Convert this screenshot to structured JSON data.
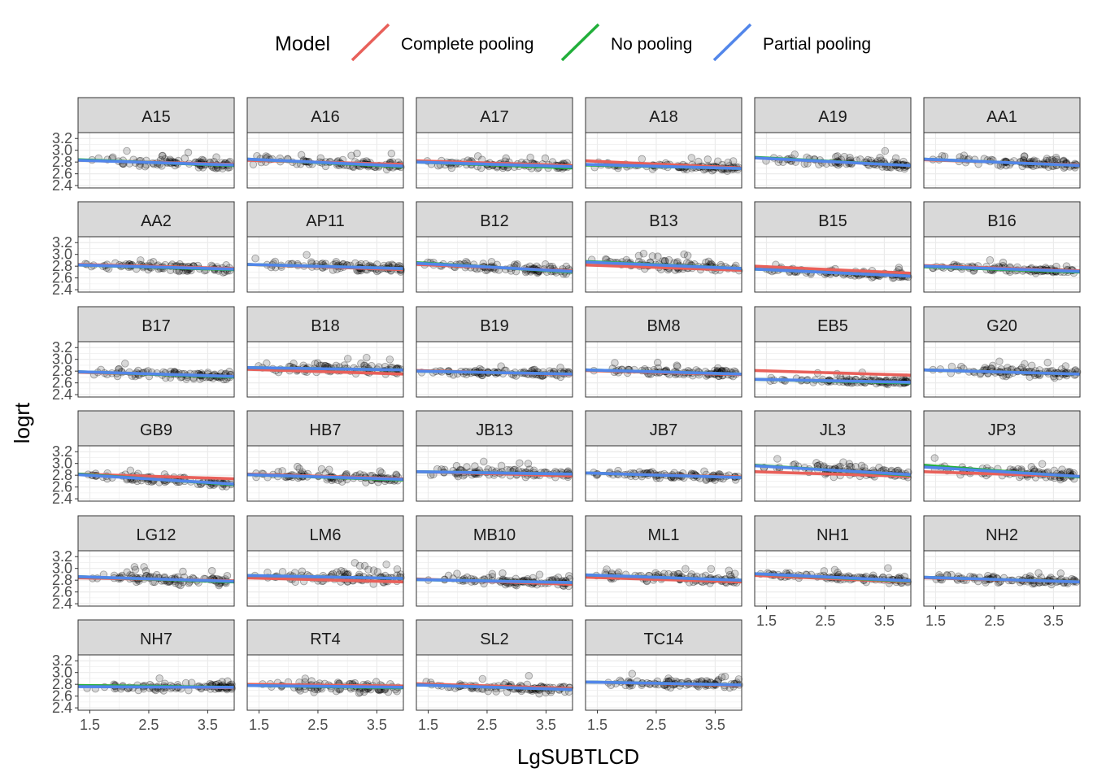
{
  "chart_data": {
    "type": "scatter",
    "xlabel": "LgSUBTLCD",
    "ylabel": "logrt",
    "xlim": [
      1.3,
      3.95
    ],
    "ylim": [
      2.36,
      3.3
    ],
    "xticks": [
      1.5,
      2.5,
      3.5
    ],
    "xtick_labels": [
      "1.5",
      "2.5",
      "3.5"
    ],
    "yticks": [
      2.4,
      2.6,
      2.8,
      3.0,
      3.2
    ],
    "ytick_labels": [
      "2.4",
      "2.6",
      "2.8",
      "3.0",
      "3.2"
    ],
    "grid": true,
    "legend": {
      "title": "Model",
      "placement": "top",
      "entries": [
        {
          "label": "Complete pooling",
          "color": "#E8605A"
        },
        {
          "label": "No pooling",
          "color": "#21AF3A"
        },
        {
          "label": "Partial pooling",
          "color": "#5286EA"
        }
      ]
    },
    "point_alpha": 0.15,
    "panels": [
      {
        "label": "A15",
        "mean": 2.77,
        "spread": 0.07,
        "cp": [
          2.83,
          2.76
        ],
        "np": [
          2.84,
          2.74
        ],
        "pp": [
          2.83,
          2.75
        ]
      },
      {
        "label": "A16",
        "mean": 2.77,
        "spread": 0.07,
        "cp": [
          2.83,
          2.76
        ],
        "np": [
          2.85,
          2.72
        ],
        "pp": [
          2.85,
          2.73
        ]
      },
      {
        "label": "A17",
        "mean": 2.74,
        "spread": 0.07,
        "cp": [
          2.82,
          2.74
        ],
        "np": [
          2.8,
          2.7
        ],
        "pp": [
          2.8,
          2.72
        ]
      },
      {
        "label": "A18",
        "mean": 2.72,
        "spread": 0.05,
        "cp": [
          2.82,
          2.7
        ],
        "np": [
          2.75,
          2.69
        ],
        "pp": [
          2.76,
          2.69
        ]
      },
      {
        "label": "A19",
        "mean": 2.79,
        "spread": 0.07,
        "cp": [
          2.87,
          2.74
        ],
        "np": [
          2.88,
          2.74
        ],
        "pp": [
          2.87,
          2.74
        ]
      },
      {
        "label": "AA1",
        "mean": 2.78,
        "spread": 0.08,
        "cp": [
          2.84,
          2.75
        ],
        "np": [
          2.85,
          2.74
        ],
        "pp": [
          2.85,
          2.74
        ]
      },
      {
        "label": "AA2",
        "mean": 2.77,
        "spread": 0.07,
        "cp": [
          2.83,
          2.76
        ],
        "np": [
          2.82,
          2.74
        ],
        "pp": [
          2.82,
          2.75
        ]
      },
      {
        "label": "AP11",
        "mean": 2.77,
        "spread": 0.07,
        "cp": [
          2.83,
          2.74
        ],
        "np": [
          2.83,
          2.76
        ],
        "pp": [
          2.83,
          2.76
        ]
      },
      {
        "label": "B12",
        "mean": 2.74,
        "spread": 0.07,
        "cp": [
          2.83,
          2.72
        ],
        "np": [
          2.86,
          2.7
        ],
        "pp": [
          2.85,
          2.71
        ]
      },
      {
        "label": "B13",
        "mean": 2.79,
        "spread": 0.08,
        "cp": [
          2.82,
          2.73
        ],
        "np": [
          2.88,
          2.76
        ],
        "pp": [
          2.87,
          2.76
        ]
      },
      {
        "label": "B15",
        "mean": 2.71,
        "spread": 0.05,
        "cp": [
          2.8,
          2.68
        ],
        "np": [
          2.75,
          2.63
        ],
        "pp": [
          2.75,
          2.63
        ]
      },
      {
        "label": "B16",
        "mean": 2.74,
        "spread": 0.05,
        "cp": [
          2.81,
          2.72
        ],
        "np": [
          2.79,
          2.7
        ],
        "pp": [
          2.8,
          2.71
        ]
      },
      {
        "label": "B17",
        "mean": 2.74,
        "spread": 0.07,
        "cp": [
          2.78,
          2.71
        ],
        "np": [
          2.79,
          2.7
        ],
        "pp": [
          2.79,
          2.71
        ]
      },
      {
        "label": "B18",
        "mean": 2.86,
        "spread": 0.09,
        "cp": [
          2.83,
          2.75
        ],
        "np": [
          2.86,
          2.82
        ],
        "pp": [
          2.86,
          2.82
        ]
      },
      {
        "label": "B19",
        "mean": 2.76,
        "spread": 0.06,
        "cp": [
          2.81,
          2.74
        ],
        "np": [
          2.8,
          2.75
        ],
        "pp": [
          2.8,
          2.75
        ]
      },
      {
        "label": "BM8",
        "mean": 2.77,
        "spread": 0.07,
        "cp": [
          2.81,
          2.74
        ],
        "np": [
          2.82,
          2.75
        ],
        "pp": [
          2.82,
          2.75
        ]
      },
      {
        "label": "EB5",
        "mean": 2.61,
        "spread": 0.05,
        "cp": [
          2.81,
          2.73
        ],
        "np": [
          2.66,
          2.6
        ],
        "pp": [
          2.66,
          2.61
        ]
      },
      {
        "label": "G20",
        "mean": 2.77,
        "spread": 0.07,
        "cp": [
          2.82,
          2.75
        ],
        "np": [
          2.82,
          2.75
        ],
        "pp": [
          2.82,
          2.75
        ]
      },
      {
        "label": "GB9",
        "mean": 2.69,
        "spread": 0.06,
        "cp": [
          2.82,
          2.74
        ],
        "np": [
          2.82,
          2.64
        ],
        "pp": [
          2.81,
          2.65
        ]
      },
      {
        "label": "HB7",
        "mean": 2.75,
        "spread": 0.06,
        "cp": [
          2.82,
          2.74
        ],
        "np": [
          2.81,
          2.72
        ],
        "pp": [
          2.81,
          2.73
        ]
      },
      {
        "label": "JB13",
        "mean": 2.84,
        "spread": 0.07,
        "cp": [
          2.86,
          2.79
        ],
        "np": [
          2.86,
          2.82
        ],
        "pp": [
          2.86,
          2.82
        ]
      },
      {
        "label": "JB7",
        "mean": 2.79,
        "spread": 0.06,
        "cp": [
          2.84,
          2.77
        ],
        "np": [
          2.84,
          2.76
        ],
        "pp": [
          2.84,
          2.76
        ]
      },
      {
        "label": "JL3",
        "mean": 2.83,
        "spread": 0.09,
        "cp": [
          2.86,
          2.78
        ],
        "np": [
          2.97,
          2.8
        ],
        "pp": [
          2.96,
          2.81
        ]
      },
      {
        "label": "JP3",
        "mean": 2.84,
        "spread": 0.09,
        "cp": [
          2.86,
          2.78
        ],
        "np": [
          2.97,
          2.77
        ],
        "pp": [
          2.94,
          2.78
        ]
      },
      {
        "label": "LG12",
        "mean": 2.82,
        "spread": 0.08,
        "cp": [
          2.84,
          2.79
        ],
        "np": [
          2.86,
          2.77
        ],
        "pp": [
          2.86,
          2.78
        ]
      },
      {
        "label": "LM6",
        "mean": 2.85,
        "spread": 0.1,
        "cp": [
          2.84,
          2.77
        ],
        "np": [
          2.88,
          2.83
        ],
        "pp": [
          2.88,
          2.83
        ]
      },
      {
        "label": "MB10",
        "mean": 2.76,
        "spread": 0.06,
        "cp": [
          2.82,
          2.73
        ],
        "np": [
          2.81,
          2.76
        ],
        "pp": [
          2.81,
          2.76
        ]
      },
      {
        "label": "ML1",
        "mean": 2.84,
        "spread": 0.08,
        "cp": [
          2.85,
          2.77
        ],
        "np": [
          2.89,
          2.8
        ],
        "pp": [
          2.89,
          2.8
        ]
      },
      {
        "label": "NH1",
        "mean": 2.81,
        "spread": 0.06,
        "cp": [
          2.88,
          2.77
        ],
        "np": [
          2.91,
          2.78
        ],
        "pp": [
          2.91,
          2.79
        ]
      },
      {
        "label": "NH2",
        "mean": 2.81,
        "spread": 0.06,
        "cp": [
          2.84,
          2.77
        ],
        "np": [
          2.85,
          2.77
        ],
        "pp": [
          2.85,
          2.77
        ]
      },
      {
        "label": "NH7",
        "mean": 2.76,
        "spread": 0.06,
        "cp": [
          2.78,
          2.74
        ],
        "np": [
          2.78,
          2.75
        ],
        "pp": [
          2.76,
          2.75
        ]
      },
      {
        "label": "RT4",
        "mean": 2.78,
        "spread": 0.09,
        "cp": [
          2.8,
          2.77
        ],
        "np": [
          2.78,
          2.74
        ],
        "pp": [
          2.78,
          2.75
        ]
      },
      {
        "label": "SL2",
        "mean": 2.75,
        "spread": 0.07,
        "cp": [
          2.81,
          2.73
        ],
        "np": [
          2.79,
          2.71
        ],
        "pp": [
          2.79,
          2.71
        ]
      },
      {
        "label": "TC14",
        "mean": 2.82,
        "spread": 0.07,
        "cp": [
          2.84,
          2.78
        ],
        "np": [
          2.84,
          2.79
        ],
        "pp": [
          2.84,
          2.79
        ]
      }
    ]
  }
}
